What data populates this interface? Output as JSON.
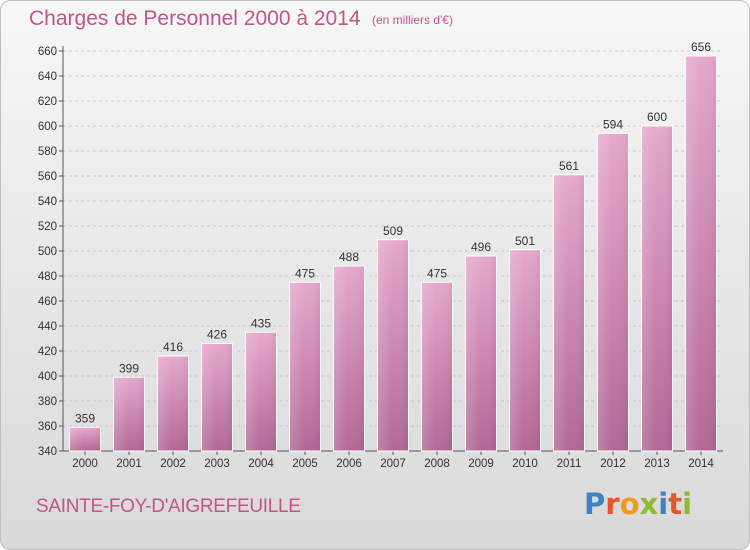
{
  "header": {
    "title": "Charges de Personnel 2000 à 2014",
    "subtitle": "(en milliers d'€)"
  },
  "footer": {
    "commune": "SAINTE-FOY-D'AIGREFEUILLE",
    "logo_text": "Proxiti",
    "logo_colors": [
      "#3b83c4",
      "#e8532b",
      "#f29a1a",
      "#8cbd2d",
      "#3b83c4",
      "#e8532b",
      "#8cbd2d"
    ]
  },
  "colors": {
    "bar_top": "#e6a8cd",
    "bar_bottom": "#b16895",
    "text_accent": "#c2548a",
    "axis_text": "#333333",
    "grid": "#c8c8c8"
  },
  "chart_data": {
    "type": "bar",
    "title": "Charges de Personnel 2000 à 2014",
    "subtitle": "(en milliers d'€)",
    "xlabel": "",
    "ylabel": "",
    "categories": [
      "2000",
      "2001",
      "2002",
      "2003",
      "2004",
      "2005",
      "2006",
      "2007",
      "2008",
      "2009",
      "2010",
      "2011",
      "2012",
      "2013",
      "2014"
    ],
    "values": [
      359,
      399,
      416,
      426,
      435,
      475,
      488,
      509,
      475,
      496,
      501,
      561,
      594,
      600,
      656
    ],
    "ylim": [
      340,
      660
    ],
    "yticks": [
      340,
      360,
      380,
      400,
      420,
      440,
      460,
      480,
      500,
      520,
      540,
      560,
      580,
      600,
      620,
      640,
      660
    ],
    "grid": true,
    "legend": "none"
  }
}
